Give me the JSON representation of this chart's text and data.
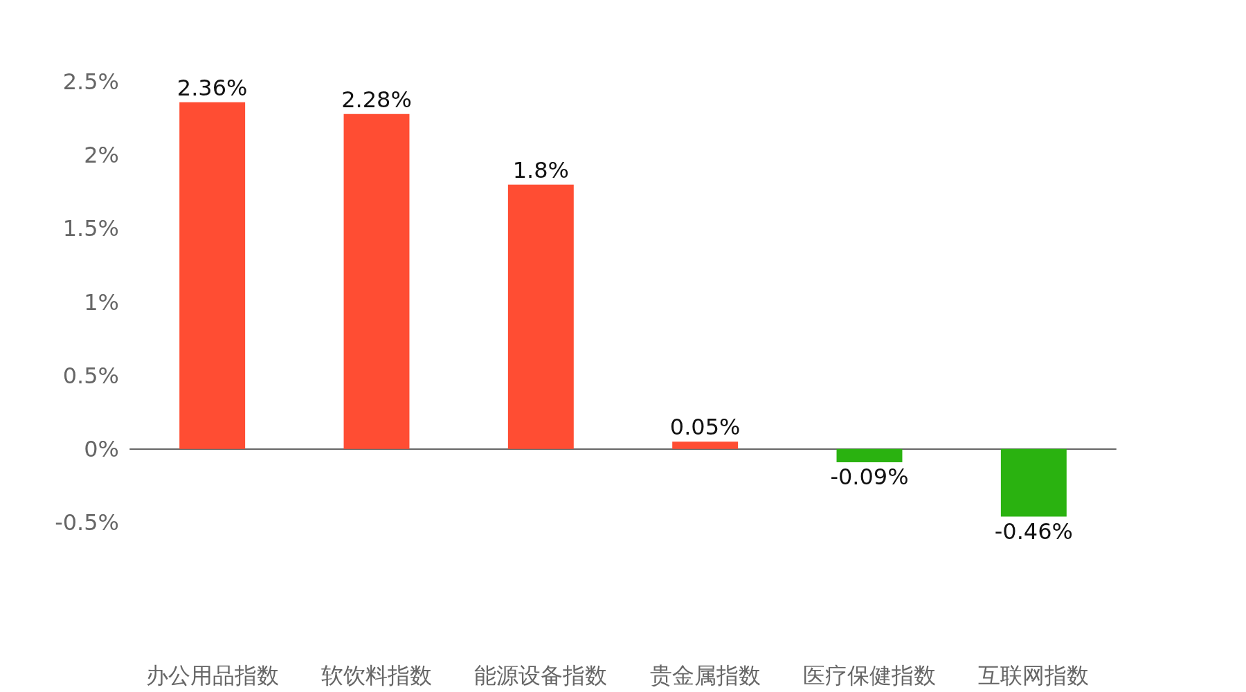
{
  "chart_data": {
    "type": "bar",
    "categories": [
      "办公用品指数",
      "软饮料指数",
      "能源设备指数",
      "贵金属指数",
      "医疗保健指数",
      "互联网指数"
    ],
    "values": [
      2.36,
      2.28,
      1.8,
      0.05,
      -0.09,
      -0.46
    ],
    "colors": [
      "#ff4d33",
      "#ff4d33",
      "#ff4d33",
      "#ff4d33",
      "#2ab210",
      "#2ab210"
    ],
    "value_labels": [
      "2.36%",
      "2.28%",
      "1.8%",
      "0.05%",
      "-0.09%",
      "-0.46%"
    ],
    "ylim": [
      -0.5,
      2.5
    ],
    "yticks": [
      {
        "value": -0.5,
        "label": "-0.5%"
      },
      {
        "value": 0,
        "label": "0%"
      },
      {
        "value": 0.5,
        "label": "0.5%"
      },
      {
        "value": 1,
        "label": "1%"
      },
      {
        "value": 1.5,
        "label": "1.5%"
      },
      {
        "value": 2,
        "label": "2%"
      },
      {
        "value": 2.5,
        "label": "2.5%"
      }
    ]
  }
}
